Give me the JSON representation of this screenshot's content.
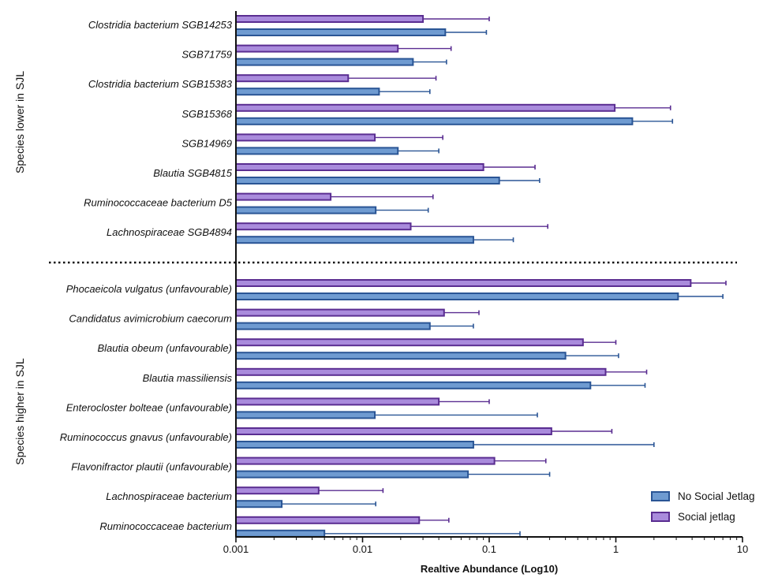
{
  "chart_data": {
    "type": "bar",
    "orientation": "horizontal",
    "xscale": "log10",
    "xlim": [
      0.001,
      10
    ],
    "xticks": [
      "0.001",
      "0.01",
      "0.1",
      "1",
      "10"
    ],
    "xlabel": "Realtive Abundance (Log10)",
    "legend_position": "bottom-right",
    "series_meta": [
      {
        "name": "No Social Jetlag",
        "fill": "#6f9bd1",
        "stroke": "#2a5595"
      },
      {
        "name": "Social jetlag",
        "fill": "#a98bdc",
        "stroke": "#5a2d91"
      }
    ],
    "groups": [
      {
        "label": "Species lower in SJL",
        "categories": [
          {
            "label": "Clostridia bacterium SGB14253",
            "values": [
              0.045,
              0.03
            ],
            "errors": [
              0.095,
              0.1
            ]
          },
          {
            "label": "SGB71759",
            "values": [
              0.025,
              0.019
            ],
            "errors": [
              0.046,
              0.05
            ]
          },
          {
            "label": "Clostridia bacterium SGB15383",
            "values": [
              0.0135,
              0.0077
            ],
            "errors": [
              0.034,
              0.038
            ]
          },
          {
            "label": "SGB15368",
            "values": [
              1.35,
              0.98
            ],
            "errors": [
              2.8,
              2.7
            ]
          },
          {
            "label": "SGB14969",
            "values": [
              0.019,
              0.0125
            ],
            "errors": [
              0.04,
              0.043
            ]
          },
          {
            "label": "Blautia SGB4815",
            "values": [
              0.12,
              0.09
            ],
            "errors": [
              0.25,
              0.23
            ]
          },
          {
            "label": "Ruminococcaceae bacterium D5",
            "values": [
              0.0127,
              0.0056
            ],
            "errors": [
              0.033,
              0.036
            ]
          },
          {
            "label": "Lachnospiraceae SGB4894",
            "values": [
              0.075,
              0.024
            ],
            "errors": [
              0.155,
              0.29
            ]
          }
        ]
      },
      {
        "label": "Species higher in SJL",
        "categories": [
          {
            "label": "Phocaeicola vulgatus (unfavourable)",
            "values": [
              3.1,
              3.9
            ],
            "errors": [
              7.0,
              7.4
            ]
          },
          {
            "label": "Candidatus avimicrobium caecorum",
            "values": [
              0.034,
              0.044
            ],
            "errors": [
              0.075,
              0.083
            ]
          },
          {
            "label": "Blautia obeum (unfavourable)",
            "values": [
              0.4,
              0.55
            ],
            "errors": [
              1.05,
              1.0
            ]
          },
          {
            "label": "Blautia massiliensis",
            "values": [
              0.63,
              0.83
            ],
            "errors": [
              1.7,
              1.75
            ]
          },
          {
            "label": "Enterocloster bolteae (unfavourable)",
            "values": [
              0.0125,
              0.04
            ],
            "errors": [
              0.24,
              0.1
            ]
          },
          {
            "label": "Ruminococcus gnavus (unfavourable)",
            "values": [
              0.075,
              0.31
            ],
            "errors": [
              2.0,
              0.93
            ]
          },
          {
            "label": "Flavonifractor plautii (unfavourable)",
            "values": [
              0.068,
              0.11
            ],
            "errors": [
              0.3,
              0.28
            ]
          },
          {
            "label": "Lachnospiraceae bacterium",
            "values": [
              0.0023,
              0.0045
            ],
            "errors": [
              0.0127,
              0.0145
            ]
          },
          {
            "label": "Ruminococcaceae bacterium",
            "values": [
              0.005,
              0.028
            ],
            "errors": [
              0.175,
              0.048
            ]
          }
        ]
      }
    ]
  }
}
